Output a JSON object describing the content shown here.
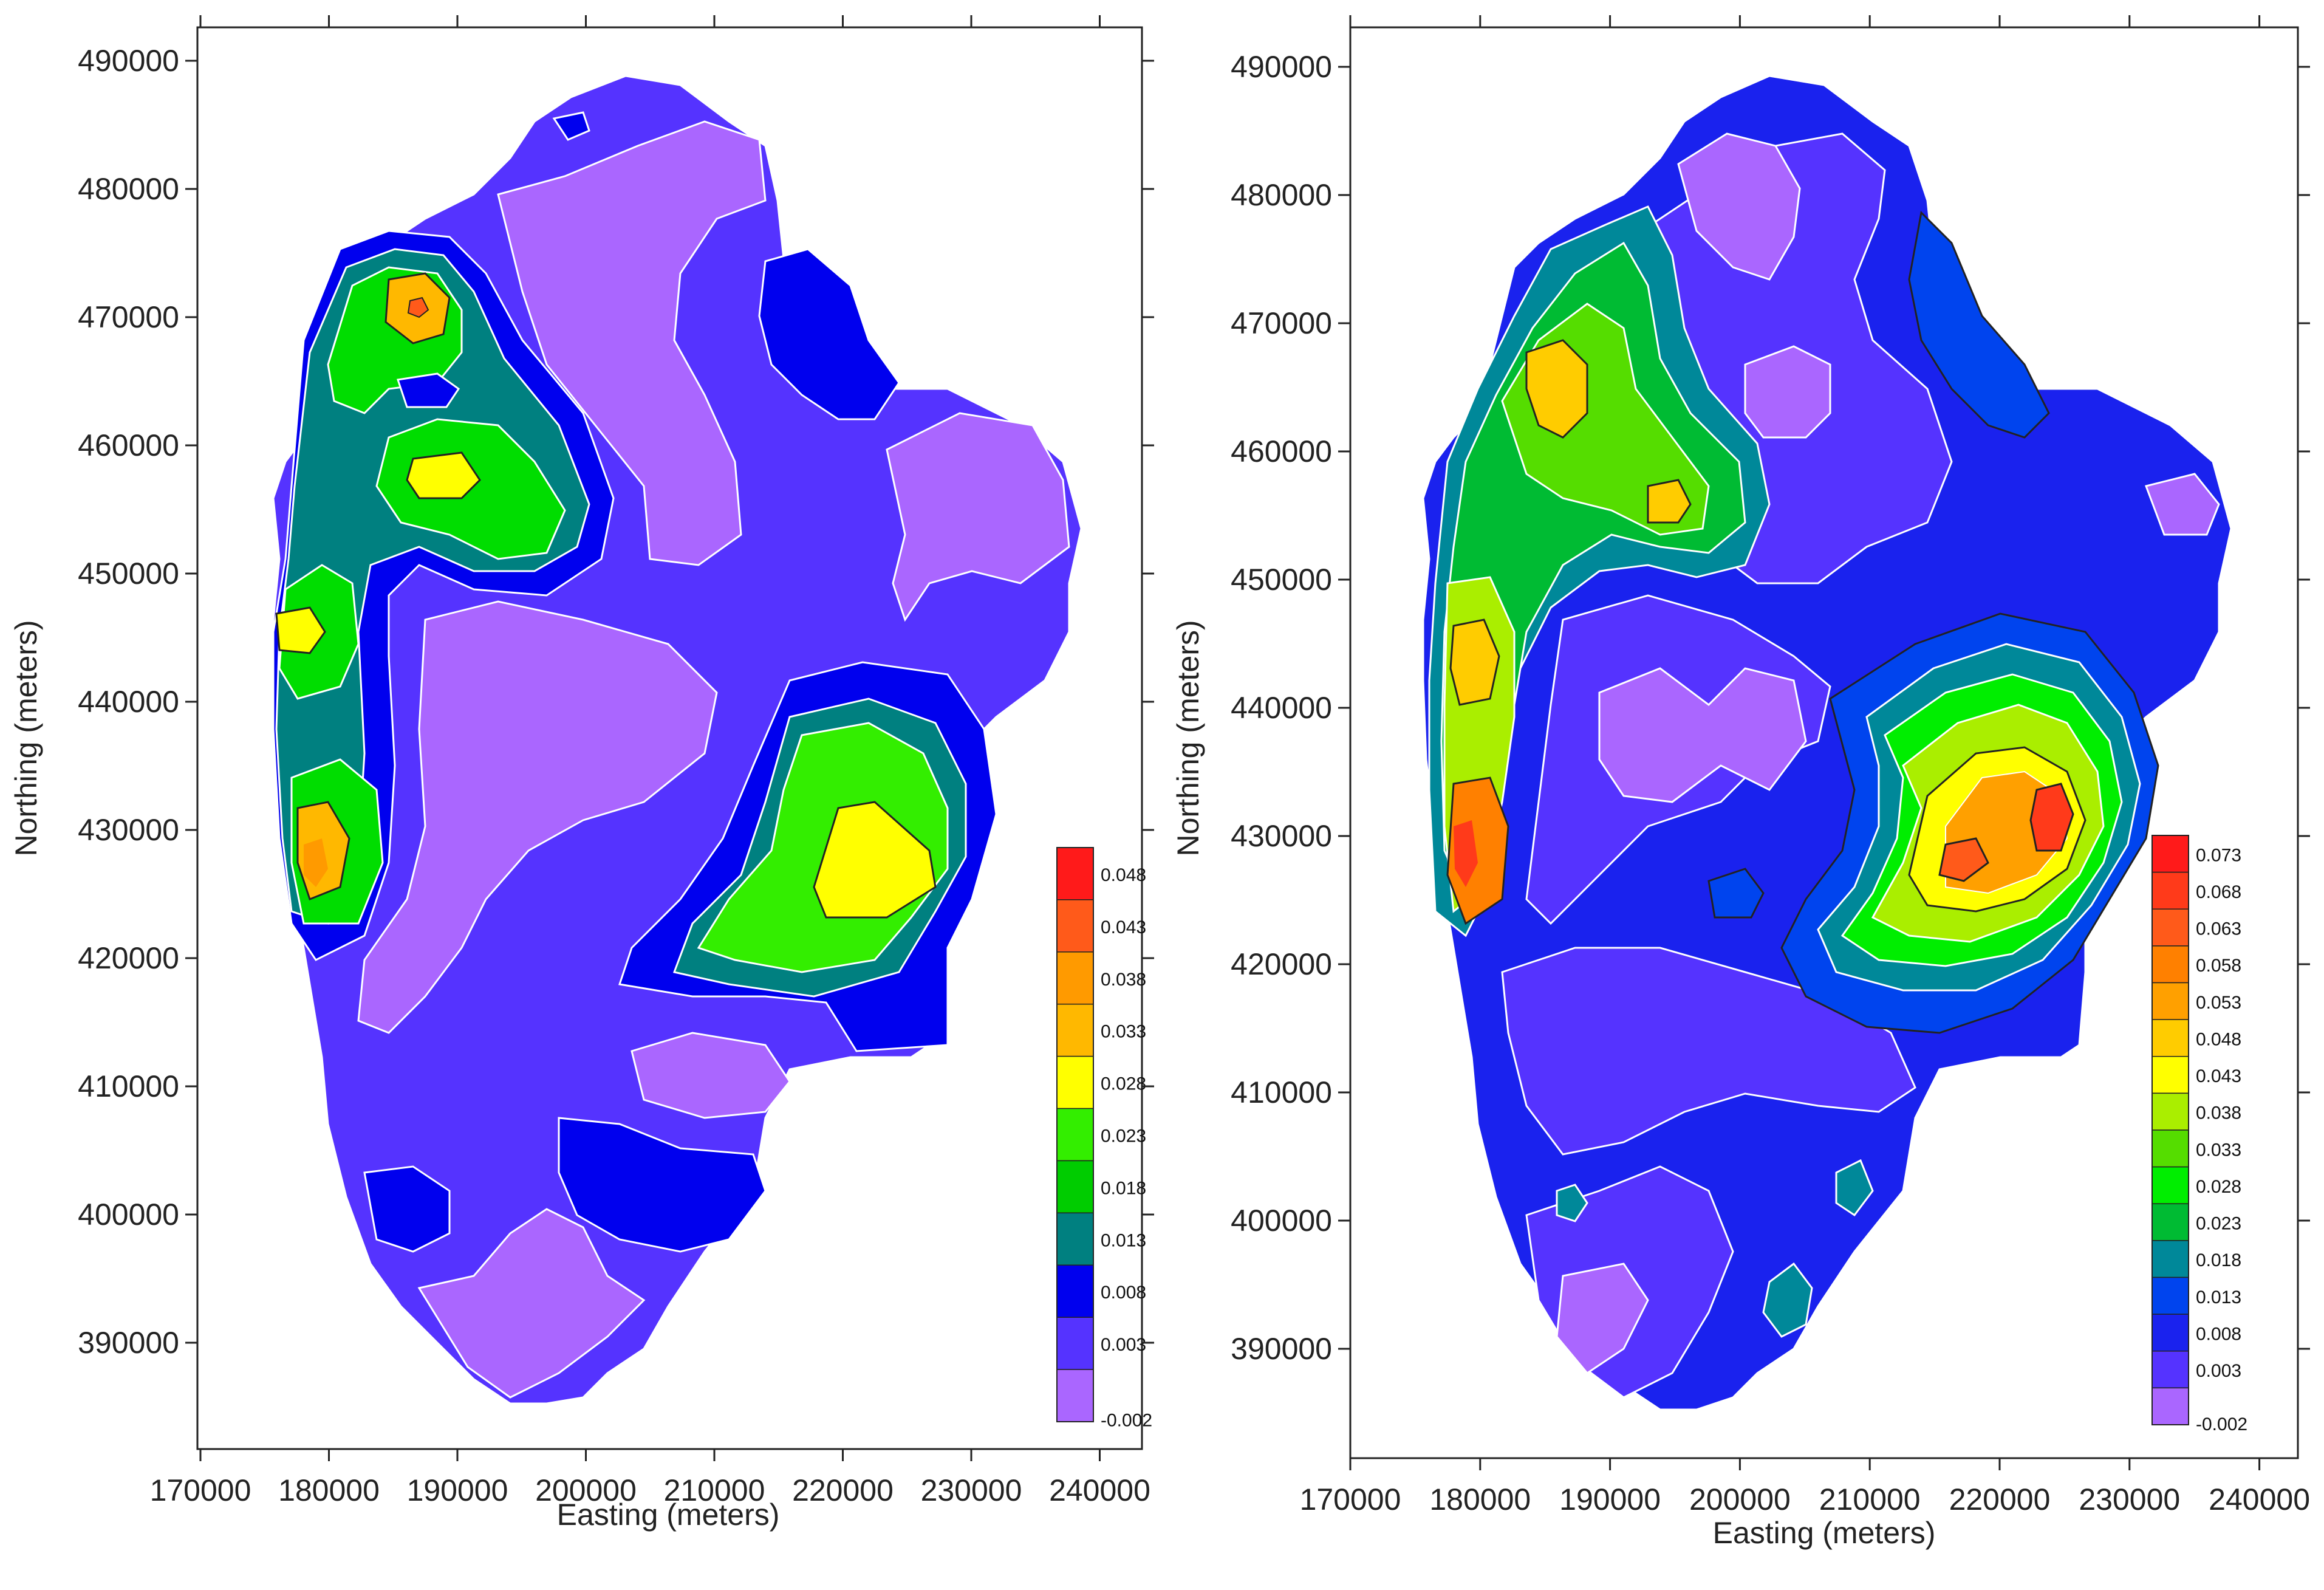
{
  "maps": [
    {
      "id": "left",
      "xlabel": "Easting (meters)",
      "ylabel": "Northing (meters)",
      "x_ticks": [
        "170000",
        "180000",
        "190000",
        "200000",
        "210000",
        "220000",
        "230000",
        "240000"
      ],
      "y_ticks": [
        "490000",
        "480000",
        "470000",
        "460000",
        "450000",
        "440000",
        "430000",
        "420000",
        "410000",
        "400000",
        "390000"
      ],
      "colorbar": {
        "labels": [
          "0.048",
          "0.043",
          "0.038",
          "0.033",
          "0.028",
          "0.023",
          "0.018",
          "0.013",
          "0.008",
          "0.003",
          "-0.002"
        ],
        "colors": [
          "#ff1a1a",
          "#ff5a1a",
          "#ff9a00",
          "#ffb800",
          "#ffff00",
          "#33ee00",
          "#00cc00",
          "#008080",
          "#0000ee",
          "#5533ff",
          "#aa66ff"
        ]
      }
    },
    {
      "id": "right",
      "xlabel": "Easting (meters)",
      "ylabel": "Northing (meters)",
      "x_ticks": [
        "170000",
        "180000",
        "190000",
        "200000",
        "210000",
        "220000",
        "230000",
        "240000"
      ],
      "y_ticks": [
        "490000",
        "480000",
        "470000",
        "460000",
        "450000",
        "440000",
        "430000",
        "420000",
        "410000",
        "400000",
        "390000"
      ],
      "colorbar": {
        "labels": [
          "0.073",
          "0.068",
          "0.063",
          "0.058",
          "0.053",
          "0.048",
          "0.043",
          "0.038",
          "0.033",
          "0.028",
          "0.023",
          "0.018",
          "0.013",
          "0.008",
          "0.003",
          "-0.002"
        ],
        "colors": [
          "#ff1a1a",
          "#ff3a1a",
          "#ff5a1a",
          "#ff8000",
          "#ffa000",
          "#ffcc00",
          "#ffff00",
          "#aaee00",
          "#55dd00",
          "#00ee00",
          "#00bb33",
          "#008899",
          "#0044ee",
          "#1a22ee",
          "#5533ff",
          "#aa66ff"
        ]
      }
    }
  ],
  "colors": {
    "land_base": "#5533ff",
    "low": "#aa66ff",
    "blue": "#0000ee",
    "teal": "#008080",
    "green": "#00dd00",
    "light_green": "#33ee00",
    "yellow": "#ffff00",
    "orange": "#ffa000",
    "red": "#ff3a1a"
  }
}
